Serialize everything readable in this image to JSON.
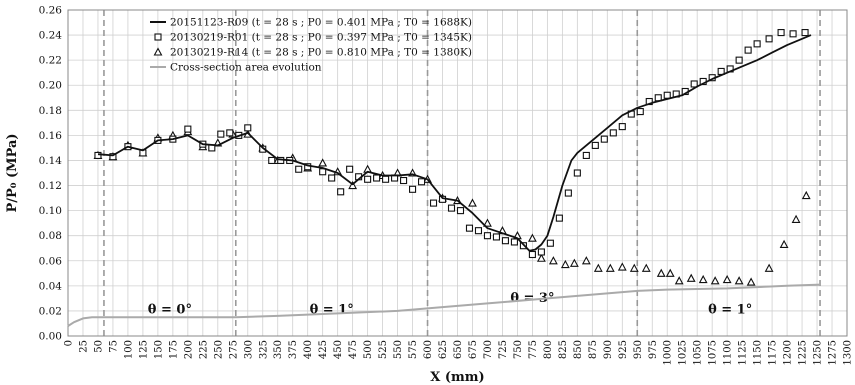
{
  "chart_data": {
    "type": "line",
    "xlabel": "X (mm)",
    "ylabel": "P/P₀ (MPa)",
    "xlim": [
      0,
      1300
    ],
    "ylim": [
      0,
      0.26
    ],
    "x_ticks": [
      "0",
      "25",
      "50",
      "75",
      "100",
      "125",
      "150",
      "175",
      "200",
      "225",
      "250",
      "275",
      "300",
      "325",
      "350",
      "375",
      "400",
      "425",
      "450",
      "475",
      "500",
      "525",
      "550",
      "575",
      "600",
      "625",
      "650",
      "675",
      "700",
      "725",
      "750",
      "775",
      "800",
      "825",
      "850",
      "875",
      "900",
      "925",
      "950",
      "975",
      "1000",
      "1025",
      "1050",
      "1075",
      "1100",
      "1125",
      "1150",
      "1175",
      "1200",
      "1225",
      "1250",
      "1275",
      "1300"
    ],
    "y_ticks": [
      "0.00",
      "0.02",
      "0.04",
      "0.06",
      "0.08",
      "0.10",
      "0.12",
      "0.14",
      "0.16",
      "0.18",
      "0.20",
      "0.22",
      "0.24",
      "0.26"
    ],
    "grid": true,
    "legend_position": "top-left",
    "region_boundaries": [
      60,
      280,
      600,
      950,
      1255
    ],
    "region_labels": [
      {
        "text": "θ = 0°",
        "x": 170,
        "y": 0.018
      },
      {
        "text": "θ = 1°",
        "x": 440,
        "y": 0.018
      },
      {
        "text": "θ = 3°",
        "x": 775,
        "y": 0.027
      },
      {
        "text": "θ = 1°",
        "x": 1105,
        "y": 0.018
      }
    ],
    "series": [
      {
        "name": "20151123-R09 (t = 28 s ; P0 = 0.401 MPa ; T0 = 1688K)",
        "style": "line",
        "color": "#111111",
        "x": [
          50,
          75,
          100,
          125,
          150,
          175,
          200,
          225,
          250,
          275,
          300,
          325,
          350,
          375,
          400,
          425,
          450,
          475,
          500,
          525,
          550,
          575,
          600,
          625,
          650,
          675,
          700,
          725,
          750,
          770,
          780,
          790,
          800,
          810,
          825,
          840,
          850,
          860,
          875,
          900,
          925,
          950,
          975,
          1000,
          1025,
          1050,
          1075,
          1100,
          1125,
          1150,
          1175,
          1200,
          1225,
          1240
        ],
        "y": [
          0.145,
          0.144,
          0.151,
          0.148,
          0.156,
          0.157,
          0.16,
          0.153,
          0.152,
          0.158,
          0.162,
          0.15,
          0.141,
          0.14,
          0.136,
          0.134,
          0.13,
          0.121,
          0.131,
          0.128,
          0.128,
          0.129,
          0.125,
          0.11,
          0.108,
          0.098,
          0.086,
          0.082,
          0.078,
          0.068,
          0.069,
          0.073,
          0.08,
          0.095,
          0.12,
          0.14,
          0.146,
          0.15,
          0.156,
          0.166,
          0.176,
          0.182,
          0.186,
          0.189,
          0.192,
          0.199,
          0.205,
          0.21,
          0.215,
          0.22,
          0.226,
          0.232,
          0.237,
          0.24
        ]
      },
      {
        "name": "20130219-R01 (t = 28 s ; P0 = 0.397 MPa ; T0 = 1345K)",
        "style": "square",
        "color": "#111111",
        "x": [
          50,
          75,
          100,
          125,
          150,
          175,
          200,
          225,
          240,
          255,
          270,
          285,
          300,
          325,
          340,
          355,
          370,
          385,
          400,
          425,
          440,
          455,
          470,
          485,
          500,
          515,
          530,
          545,
          560,
          575,
          590,
          610,
          625,
          640,
          655,
          670,
          685,
          700,
          715,
          730,
          745,
          760,
          775,
          790,
          805,
          820,
          835,
          850,
          865,
          880,
          895,
          910,
          925,
          940,
          955,
          970,
          985,
          1000,
          1015,
          1030,
          1045,
          1060,
          1075,
          1090,
          1105,
          1120,
          1135,
          1150,
          1170,
          1190,
          1210,
          1230
        ],
        "y": [
          0.144,
          0.143,
          0.151,
          0.146,
          0.156,
          0.157,
          0.165,
          0.153,
          0.15,
          0.161,
          0.162,
          0.16,
          0.166,
          0.149,
          0.14,
          0.14,
          0.14,
          0.133,
          0.135,
          0.131,
          0.126,
          0.115,
          0.133,
          0.127,
          0.125,
          0.126,
          0.125,
          0.126,
          0.124,
          0.117,
          0.123,
          0.106,
          0.109,
          0.102,
          0.1,
          0.086,
          0.084,
          0.08,
          0.079,
          0.076,
          0.075,
          0.072,
          0.065,
          0.067,
          0.074,
          0.094,
          0.114,
          0.13,
          0.144,
          0.152,
          0.157,
          0.162,
          0.167,
          0.177,
          0.179,
          0.187,
          0.19,
          0.192,
          0.193,
          0.195,
          0.201,
          0.203,
          0.206,
          0.211,
          0.213,
          0.22,
          0.228,
          0.233,
          0.237,
          0.242,
          0.241,
          0.242
        ]
      },
      {
        "name": "20130219-R14 (t = 28 s ; P0 = 0.810 MPa ; T0 = 1380K)",
        "style": "triangle",
        "color": "#111111",
        "x": [
          50,
          75,
          100,
          125,
          150,
          175,
          200,
          225,
          250,
          275,
          300,
          325,
          350,
          375,
          400,
          425,
          450,
          475,
          500,
          525,
          550,
          575,
          600,
          625,
          650,
          675,
          700,
          725,
          750,
          775,
          790,
          810,
          830,
          845,
          865,
          885,
          905,
          925,
          945,
          965,
          990,
          1005,
          1020,
          1040,
          1060,
          1080,
          1100,
          1120,
          1140,
          1170,
          1195,
          1215,
          1232
        ],
        "y": [
          0.144,
          0.143,
          0.152,
          0.146,
          0.158,
          0.16,
          0.163,
          0.151,
          0.154,
          0.161,
          0.161,
          0.15,
          0.14,
          0.142,
          0.134,
          0.138,
          0.131,
          0.12,
          0.133,
          0.128,
          0.13,
          0.13,
          0.125,
          0.11,
          0.108,
          0.106,
          0.09,
          0.084,
          0.08,
          0.078,
          0.062,
          0.06,
          0.057,
          0.058,
          0.06,
          0.054,
          0.054,
          0.055,
          0.054,
          0.054,
          0.05,
          0.05,
          0.044,
          0.046,
          0.045,
          0.044,
          0.045,
          0.044,
          0.043,
          0.054,
          0.073,
          0.093,
          0.112
        ]
      },
      {
        "name": "Cross-section area evolution",
        "style": "line",
        "color": "#aaaaaa",
        "x": [
          0,
          10,
          25,
          40,
          60,
          100,
          200,
          280,
          350,
          450,
          550,
          600,
          700,
          800,
          900,
          950,
          1000,
          1100,
          1200,
          1255
        ],
        "y": [
          0.008,
          0.011,
          0.014,
          0.015,
          0.015,
          0.015,
          0.015,
          0.015,
          0.016,
          0.018,
          0.02,
          0.022,
          0.026,
          0.03,
          0.034,
          0.036,
          0.037,
          0.038,
          0.04,
          0.041
        ]
      }
    ]
  }
}
